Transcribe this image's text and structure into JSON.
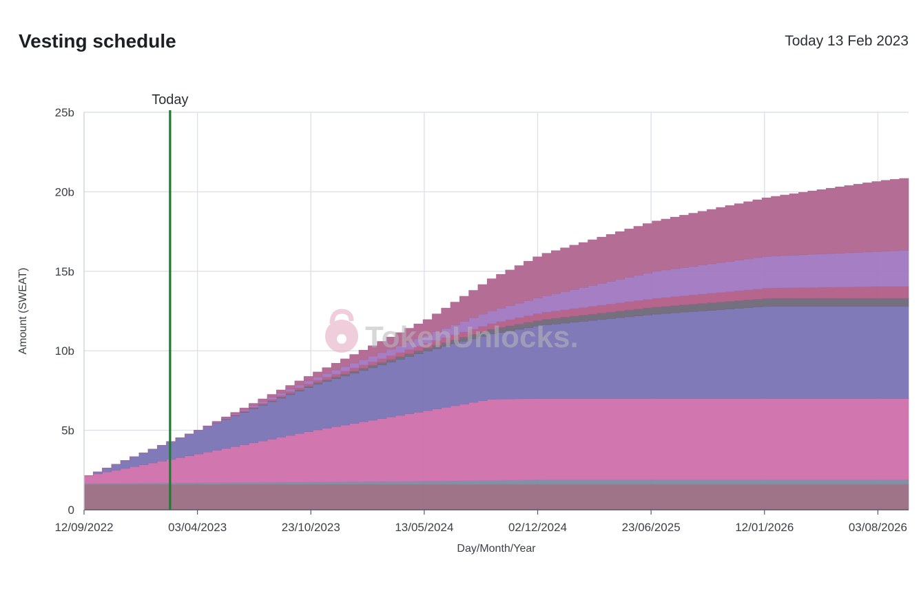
{
  "header": {
    "title": "Vesting schedule",
    "today": "Today 13 Feb 2023"
  },
  "watermark": {
    "text": "TokenUnlocks."
  },
  "chart_data": {
    "type": "area",
    "stacked": true,
    "xlabel": "Day/Month/Year",
    "ylabel": "Amount (SWEAT)",
    "ylim": [
      0,
      25
    ],
    "y_unit": "b",
    "y_ticks": [
      "0",
      "5b",
      "10b",
      "15b",
      "20b",
      "25b"
    ],
    "x_ticks": [
      "12/09/2022",
      "03/04/2023",
      "23/10/2023",
      "13/05/2024",
      "02/12/2024",
      "23/06/2025",
      "12/01/2026",
      "03/08/2026"
    ],
    "x_range": [
      "12/09/2022",
      "27/09/2026"
    ],
    "grid": true,
    "today_marker": {
      "label": "Today",
      "date": "13/02/2023",
      "color": "#1e7a2e"
    },
    "x": [
      "12/09/2022",
      "03/04/2023",
      "23/10/2023",
      "13/05/2024",
      "01/09/2024",
      "02/12/2024",
      "23/06/2025",
      "12/01/2026",
      "03/08/2026",
      "27/09/2026"
    ],
    "series": [
      {
        "color": "#9a6d82",
        "values": [
          1.6,
          1.6,
          1.6,
          1.6,
          1.6,
          1.6,
          1.6,
          1.6,
          1.6,
          1.6
        ]
      },
      {
        "color": "#7d8aa0",
        "values": [
          0.05,
          0.1,
          0.15,
          0.2,
          0.25,
          0.3,
          0.3,
          0.3,
          0.3,
          0.3
        ]
      },
      {
        "color": "#d06fab",
        "values": [
          0.5,
          1.85,
          3.25,
          4.45,
          5.1,
          5.1,
          5.1,
          5.1,
          5.1,
          5.1
        ]
      },
      {
        "color": "#7a73b4",
        "values": [
          0.0,
          1.55,
          2.85,
          3.75,
          4.1,
          4.6,
          5.3,
          5.8,
          5.8,
          5.8
        ]
      },
      {
        "color": "#6e6878",
        "values": [
          0.0,
          0.0,
          0.1,
          0.2,
          0.3,
          0.35,
          0.45,
          0.5,
          0.5,
          0.5
        ]
      },
      {
        "color": "#b25d86",
        "values": [
          0.0,
          0.0,
          0.15,
          0.3,
          0.35,
          0.45,
          0.55,
          0.65,
          0.75,
          0.75
        ]
      },
      {
        "color": "#a077c0",
        "values": [
          0.0,
          0.0,
          0.2,
          0.5,
          0.8,
          1.0,
          1.7,
          2.0,
          2.2,
          2.3
        ]
      },
      {
        "color": "#b06690",
        "values": [
          0.0,
          0.0,
          0.3,
          1.0,
          2.0,
          2.65,
          3.15,
          3.7,
          4.45,
          4.55
        ]
      }
    ]
  }
}
